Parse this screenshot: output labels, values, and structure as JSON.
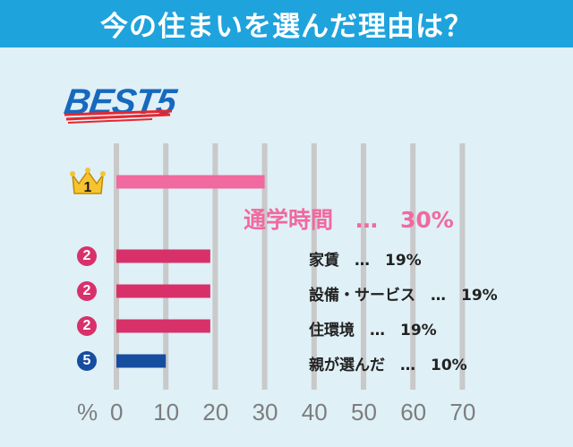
{
  "header": {
    "title": "今の住まいを選んだ理由は？"
  },
  "badge": {
    "text": "BEST5"
  },
  "chart_data": {
    "type": "bar",
    "orientation": "horizontal",
    "unit": "%",
    "xlim": [
      0,
      70
    ],
    "ticks": [
      "0",
      "10",
      "20",
      "30",
      "40",
      "50",
      "60",
      "70"
    ],
    "grid": "vertical",
    "items": [
      {
        "rank": "1",
        "label": "通学時間",
        "value": 30,
        "value_text": "30%",
        "color": "#f0699f",
        "rank_color": "#f6c431"
      },
      {
        "rank": "2",
        "label": "家賃",
        "value": 19,
        "value_text": "19%",
        "color": "#d8316a",
        "rank_color": "#d8316a"
      },
      {
        "rank": "2",
        "label": "設備・サービス",
        "value": 19,
        "value_text": "19%",
        "color": "#d8316a",
        "rank_color": "#d8316a"
      },
      {
        "rank": "2",
        "label": "住環境",
        "value": 19,
        "value_text": "19%",
        "color": "#d8316a",
        "rank_color": "#d8316a"
      },
      {
        "rank": "5",
        "label": "親が選んだ",
        "value": 10,
        "value_text": "10%",
        "color": "#174d9e",
        "rank_color": "#174d9e"
      }
    ],
    "separator": "…"
  },
  "axis": {
    "unit_label": "%"
  }
}
